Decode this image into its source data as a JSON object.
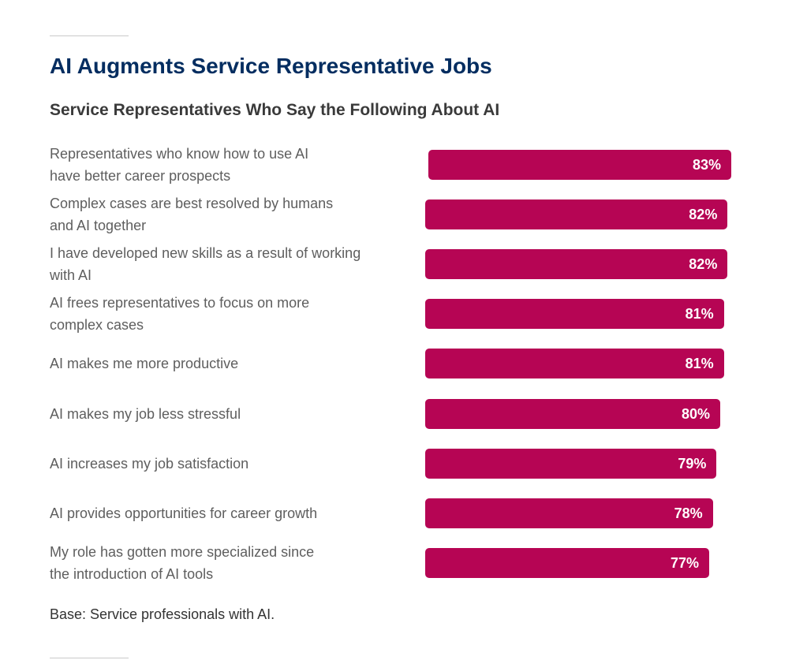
{
  "title": "AI Augments Service Representative Jobs",
  "subtitle": "Service Representatives Who Say the Following About AI",
  "note": "Base: Service professionals with AI.",
  "colors": {
    "bar": "#b60554",
    "title": "#032d60",
    "label": "#5e5e5e"
  },
  "chart_data": {
    "type": "bar",
    "orientation": "horizontal",
    "title": "Service Representatives Who Say the Following About AI",
    "xlabel": "",
    "ylabel": "",
    "unit": "%",
    "grid": false,
    "categories": [
      "Representatives who know how to use AI have better career prospects",
      "Complex cases are best resolved by humans and AI together",
      "I have developed new skills as a result of working with AI",
      "AI frees representatives to focus on more complex cases",
      "AI makes me more productive",
      "AI makes my job less stressful",
      "AI increases my job satisfaction",
      "AI provides opportunities for career growth",
      "My role has gotten more specialized since the introduction of AI tools"
    ],
    "category_lines": [
      [
        "Representatives who know how to use AI",
        "have better career prospects"
      ],
      [
        "Complex cases are best resolved by humans",
        "and AI together"
      ],
      [
        "I have developed new skills as a result of working",
        "with AI"
      ],
      [
        "AI frees representatives to focus on more",
        "complex cases"
      ],
      [
        "AI makes me more productive"
      ],
      [
        "AI makes my job less stressful"
      ],
      [
        "AI increases my job satisfaction"
      ],
      [
        "AI provides opportunities for career growth"
      ],
      [
        "My role has gotten more specialized since",
        "the introduction of AI tools"
      ]
    ],
    "values": [
      83,
      82,
      82,
      81,
      81,
      80,
      79,
      78,
      77
    ],
    "value_labels": [
      "83%",
      "82%",
      "82%",
      "81%",
      "81%",
      "80%",
      "79%",
      "78%",
      "77%"
    ]
  }
}
